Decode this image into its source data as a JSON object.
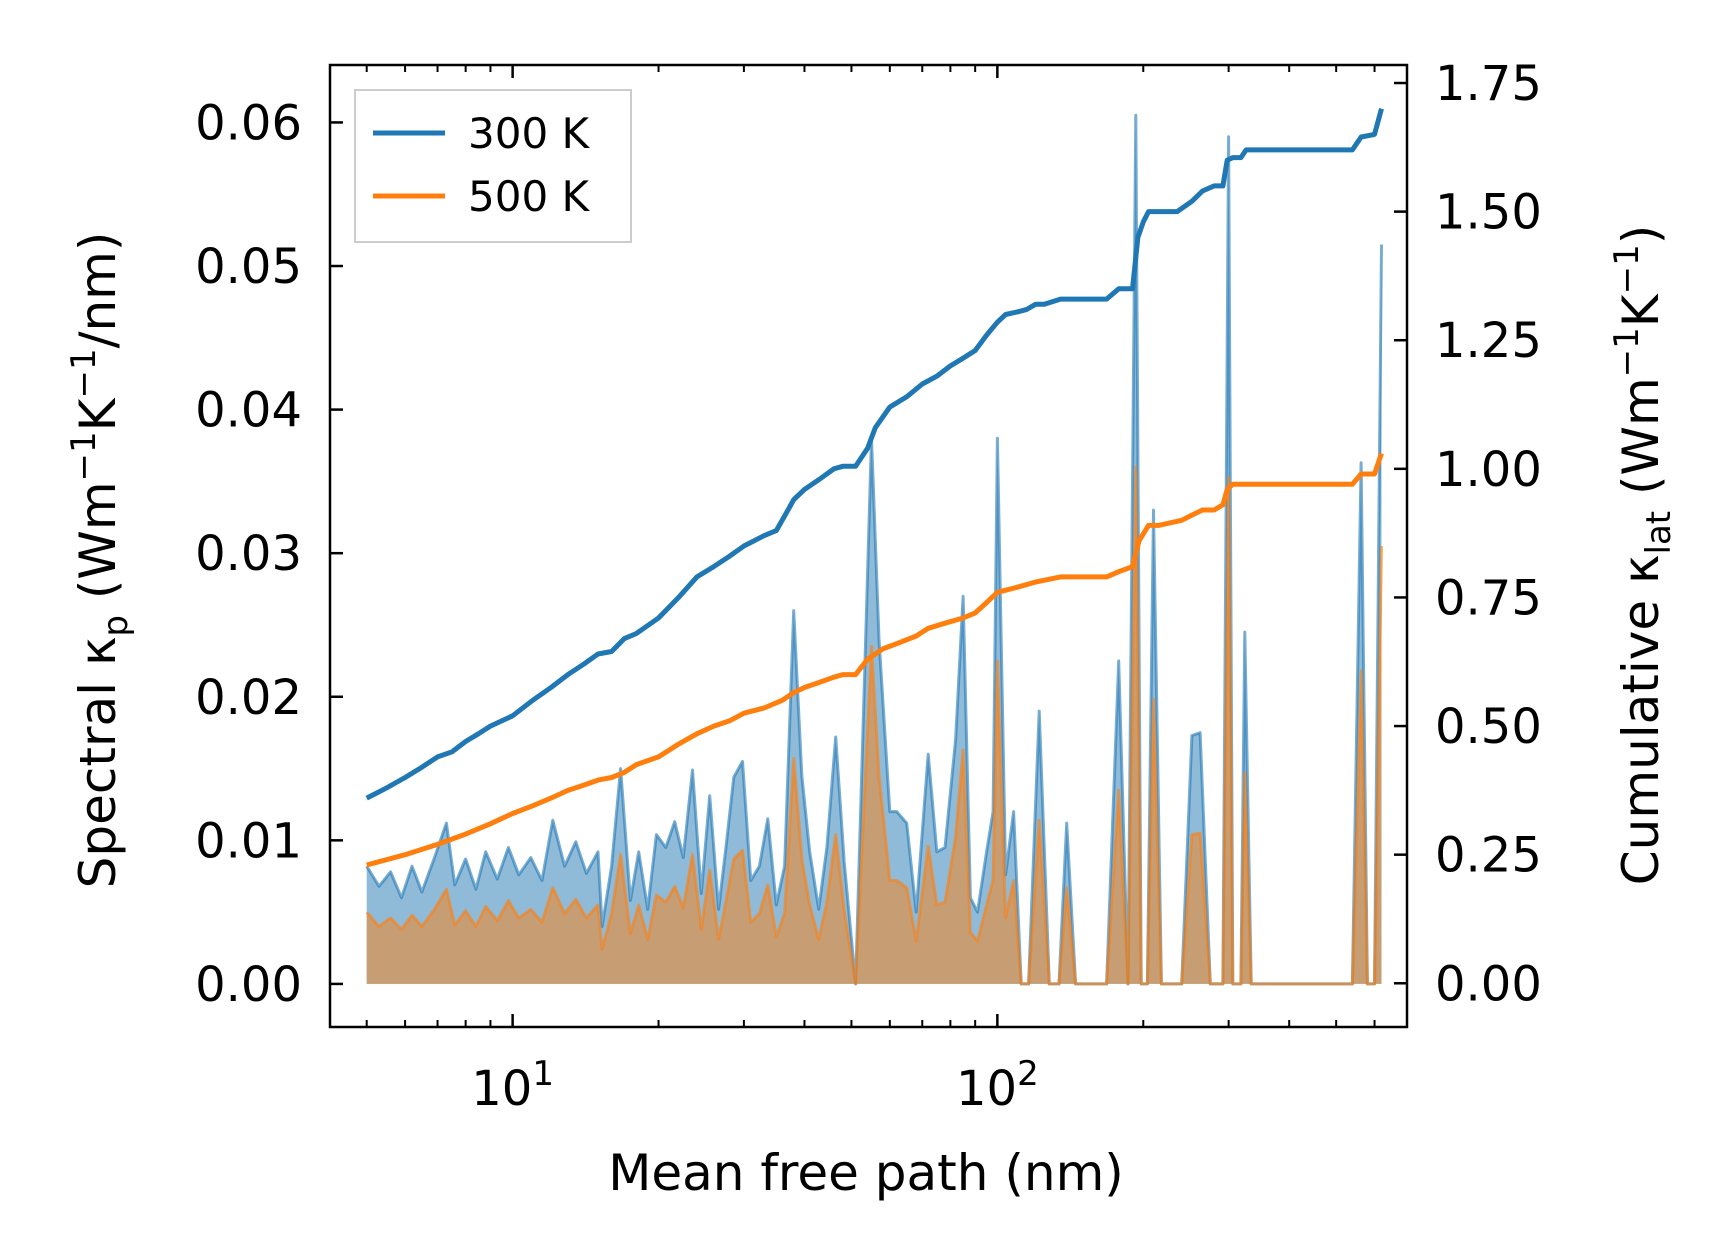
{
  "chart_data": {
    "type": "line",
    "xscale": "log",
    "xlabel": "Mean free path (nm)",
    "ylabel_left": {
      "text": "Spectral κ",
      "sub": "p",
      "unit": " (Wm",
      "sup1": "−1",
      "mid": "K",
      "sup2": "−1",
      "end": "/nm)"
    },
    "ylabel_right": {
      "text": "Cumulative κ",
      "sub": "lat",
      "unit": " (Wm",
      "sup1": "−1",
      "mid": "K",
      "sup2": "−1",
      "end": ")"
    },
    "xlim": [
      4.2,
      700
    ],
    "ylim_left": [
      -0.003,
      0.064
    ],
    "ylim_right": [
      -0.085,
      1.785
    ],
    "xticks": [
      {
        "base": "10",
        "exp": "1",
        "value": 10
      },
      {
        "base": "10",
        "exp": "2",
        "value": 100
      }
    ],
    "yticks_left": [
      "0.00",
      "0.01",
      "0.02",
      "0.03",
      "0.04",
      "0.05",
      "0.06"
    ],
    "yticks_right": [
      "0.00",
      "0.25",
      "0.50",
      "0.75",
      "1.00",
      "1.25",
      "1.50",
      "1.75"
    ],
    "legend": {
      "position": "upper-left",
      "entries": [
        {
          "label": "300 K",
          "color": "#1f77b4"
        },
        {
          "label": "500 K",
          "color": "#ff7f0e"
        }
      ]
    },
    "spectral": {
      "300K": [
        [
          5,
          0.0082
        ],
        [
          5.3,
          0.0068
        ],
        [
          5.6,
          0.0078
        ],
        [
          5.9,
          0.006
        ],
        [
          6.2,
          0.0082
        ],
        [
          6.5,
          0.0064
        ],
        [
          6.9,
          0.0088
        ],
        [
          7.3,
          0.0112
        ],
        [
          7.6,
          0.0069
        ],
        [
          8.0,
          0.0087
        ],
        [
          8.4,
          0.0066
        ],
        [
          8.8,
          0.0092
        ],
        [
          9.3,
          0.0073
        ],
        [
          9.8,
          0.0095
        ],
        [
          10.3,
          0.0076
        ],
        [
          10.9,
          0.0088
        ],
        [
          11.5,
          0.0072
        ],
        [
          12.1,
          0.0114
        ],
        [
          12.8,
          0.0082
        ],
        [
          13.5,
          0.0099
        ],
        [
          14.2,
          0.0077
        ],
        [
          15.0,
          0.0092
        ],
        [
          15.3,
          0.004
        ],
        [
          16.0,
          0.0082
        ],
        [
          16.7,
          0.015
        ],
        [
          17.5,
          0.0058
        ],
        [
          18.2,
          0.0092
        ],
        [
          19.0,
          0.0052
        ],
        [
          19.8,
          0.0104
        ],
        [
          20.7,
          0.0095
        ],
        [
          21.6,
          0.0113
        ],
        [
          22.5,
          0.0088
        ],
        [
          23.5,
          0.0149
        ],
        [
          24.5,
          0.0063
        ],
        [
          25.5,
          0.0131
        ],
        [
          26.6,
          0.0052
        ],
        [
          27.5,
          0.0093
        ],
        [
          28.6,
          0.0144
        ],
        [
          29.8,
          0.0155
        ],
        [
          31.0,
          0.0072
        ],
        [
          32.3,
          0.0082
        ],
        [
          33.6,
          0.0115
        ],
        [
          35.0,
          0.0055
        ],
        [
          36.4,
          0.0082
        ],
        [
          38.0,
          0.026
        ],
        [
          39.5,
          0.0145
        ],
        [
          41.0,
          0.0092
        ],
        [
          42.8,
          0.0052
        ],
        [
          44.5,
          0.0095
        ],
        [
          46.4,
          0.0172
        ],
        [
          48.3,
          0.0085
        ],
        [
          51,
          0.0
        ],
        [
          55,
          0.038
        ],
        [
          57,
          0.024
        ],
        [
          60,
          0.012
        ],
        [
          62,
          0.012
        ],
        [
          65,
          0.0112
        ],
        [
          68,
          0.005
        ],
        [
          72,
          0.016
        ],
        [
          75,
          0.0092
        ],
        [
          78,
          0.0095
        ],
        [
          82,
          0.017
        ],
        [
          85,
          0.027
        ],
        [
          88,
          0.006
        ],
        [
          91,
          0.005
        ],
        [
          95,
          0.0092
        ],
        [
          98,
          0.012
        ],
        [
          100,
          0.038
        ],
        [
          104,
          0.0076
        ],
        [
          108,
          0.012
        ],
        [
          112,
          0.0
        ],
        [
          116,
          0.0
        ],
        [
          122,
          0.019
        ],
        [
          128,
          0.0
        ],
        [
          134,
          0.0
        ],
        [
          139,
          0.0112
        ],
        [
          145,
          0.0
        ],
        [
          155,
          0.0
        ],
        [
          168,
          0.0
        ],
        [
          178,
          0.0225
        ],
        [
          186,
          0.0
        ],
        [
          193,
          0.0605
        ],
        [
          198,
          0.0
        ],
        [
          204,
          0.0
        ],
        [
          210,
          0.033
        ],
        [
          218,
          0.0
        ],
        [
          240,
          0.0
        ],
        [
          252,
          0.0173
        ],
        [
          262,
          0.0175
        ],
        [
          275,
          0.0
        ],
        [
          292,
          0.0
        ],
        [
          300,
          0.059
        ],
        [
          306,
          0.0
        ],
        [
          318,
          0.0
        ],
        [
          324,
          0.0245
        ],
        [
          334,
          0.0
        ],
        [
          400,
          0.0
        ],
        [
          540,
          0.0
        ],
        [
          563,
          0.0363
        ],
        [
          580,
          0.0
        ],
        [
          600,
          0.0
        ],
        [
          620,
          0.0515
        ]
      ],
      "500K": [
        [
          5,
          0.005
        ],
        [
          5.3,
          0.004
        ],
        [
          5.6,
          0.0046
        ],
        [
          5.9,
          0.0038
        ],
        [
          6.2,
          0.0048
        ],
        [
          6.5,
          0.004
        ],
        [
          6.9,
          0.0052
        ],
        [
          7.3,
          0.0066
        ],
        [
          7.6,
          0.0041
        ],
        [
          8.0,
          0.0051
        ],
        [
          8.4,
          0.004
        ],
        [
          8.8,
          0.0054
        ],
        [
          9.3,
          0.0044
        ],
        [
          9.8,
          0.0058
        ],
        [
          10.3,
          0.0046
        ],
        [
          10.9,
          0.0052
        ],
        [
          11.5,
          0.0043
        ],
        [
          12.1,
          0.0067
        ],
        [
          12.8,
          0.0049
        ],
        [
          13.5,
          0.0059
        ],
        [
          14.2,
          0.0046
        ],
        [
          15.0,
          0.0055
        ],
        [
          15.3,
          0.0024
        ],
        [
          16.0,
          0.0049
        ],
        [
          16.7,
          0.009
        ],
        [
          17.5,
          0.0035
        ],
        [
          18.2,
          0.0055
        ],
        [
          19.0,
          0.0031
        ],
        [
          19.8,
          0.0062
        ],
        [
          20.7,
          0.0057
        ],
        [
          21.6,
          0.0068
        ],
        [
          22.5,
          0.0053
        ],
        [
          23.5,
          0.009
        ],
        [
          24.5,
          0.0038
        ],
        [
          25.5,
          0.0079
        ],
        [
          26.6,
          0.0031
        ],
        [
          27.5,
          0.0056
        ],
        [
          28.6,
          0.0087
        ],
        [
          29.8,
          0.0093
        ],
        [
          31.0,
          0.0043
        ],
        [
          32.3,
          0.0049
        ],
        [
          33.6,
          0.0069
        ],
        [
          35.0,
          0.0033
        ],
        [
          36.4,
          0.0049
        ],
        [
          38.0,
          0.0157
        ],
        [
          39.5,
          0.0087
        ],
        [
          41.0,
          0.0055
        ],
        [
          42.8,
          0.0031
        ],
        [
          44.5,
          0.0057
        ],
        [
          46.4,
          0.0104
        ],
        [
          48.3,
          0.0051
        ],
        [
          51,
          0.0
        ],
        [
          55,
          0.0235
        ],
        [
          57,
          0.0145
        ],
        [
          60,
          0.0072
        ],
        [
          62,
          0.0072
        ],
        [
          65,
          0.0067
        ],
        [
          68,
          0.003
        ],
        [
          72,
          0.0096
        ],
        [
          75,
          0.0055
        ],
        [
          78,
          0.0057
        ],
        [
          82,
          0.0102
        ],
        [
          85,
          0.0163
        ],
        [
          88,
          0.0036
        ],
        [
          91,
          0.003
        ],
        [
          95,
          0.0055
        ],
        [
          98,
          0.0072
        ],
        [
          100,
          0.0225
        ],
        [
          104,
          0.0046
        ],
        [
          108,
          0.0072
        ],
        [
          112,
          0.0
        ],
        [
          116,
          0.0
        ],
        [
          122,
          0.0114
        ],
        [
          128,
          0.0
        ],
        [
          134,
          0.0
        ],
        [
          139,
          0.0067
        ],
        [
          145,
          0.0
        ],
        [
          155,
          0.0
        ],
        [
          168,
          0.0
        ],
        [
          178,
          0.0135
        ],
        [
          186,
          0.0
        ],
        [
          193,
          0.036
        ],
        [
          198,
          0.0
        ],
        [
          204,
          0.0
        ],
        [
          210,
          0.0198
        ],
        [
          218,
          0.0
        ],
        [
          240,
          0.0
        ],
        [
          252,
          0.0104
        ],
        [
          262,
          0.0105
        ],
        [
          275,
          0.0
        ],
        [
          292,
          0.0
        ],
        [
          300,
          0.0353
        ],
        [
          306,
          0.0
        ],
        [
          318,
          0.0
        ],
        [
          324,
          0.0147
        ],
        [
          334,
          0.0
        ],
        [
          400,
          0.0
        ],
        [
          540,
          0.0
        ],
        [
          563,
          0.0218
        ],
        [
          580,
          0.0
        ],
        [
          600,
          0.0
        ],
        [
          620,
          0.0305
        ]
      ]
    },
    "cumulative": {
      "300K": [
        [
          5,
          0.36
        ],
        [
          5.5,
          0.38
        ],
        [
          6,
          0.4
        ],
        [
          6.5,
          0.42
        ],
        [
          7,
          0.44
        ],
        [
          7.5,
          0.45
        ],
        [
          8,
          0.47
        ],
        [
          8.5,
          0.485
        ],
        [
          9,
          0.5
        ],
        [
          10,
          0.52
        ],
        [
          11,
          0.55
        ],
        [
          12,
          0.575
        ],
        [
          13,
          0.6
        ],
        [
          14,
          0.62
        ],
        [
          15,
          0.64
        ],
        [
          16,
          0.645
        ],
        [
          17,
          0.67
        ],
        [
          18,
          0.68
        ],
        [
          20,
          0.71
        ],
        [
          22,
          0.75
        ],
        [
          24,
          0.79
        ],
        [
          26,
          0.81
        ],
        [
          28,
          0.83
        ],
        [
          30,
          0.85
        ],
        [
          33,
          0.87
        ],
        [
          35,
          0.88
        ],
        [
          37,
          0.92
        ],
        [
          38,
          0.94
        ],
        [
          40,
          0.96
        ],
        [
          43,
          0.98
        ],
        [
          46,
          1.0
        ],
        [
          48,
          1.005
        ],
        [
          51,
          1.005
        ],
        [
          54,
          1.04
        ],
        [
          56,
          1.08
        ],
        [
          60,
          1.12
        ],
        [
          65,
          1.14
        ],
        [
          70,
          1.165
        ],
        [
          75,
          1.18
        ],
        [
          80,
          1.2
        ],
        [
          85,
          1.215
        ],
        [
          90,
          1.23
        ],
        [
          95,
          1.26
        ],
        [
          100,
          1.285
        ],
        [
          104,
          1.3
        ],
        [
          110,
          1.305
        ],
        [
          115,
          1.31
        ],
        [
          120,
          1.32
        ],
        [
          125,
          1.32
        ],
        [
          135,
          1.33
        ],
        [
          150,
          1.33
        ],
        [
          168,
          1.33
        ],
        [
          178,
          1.35
        ],
        [
          190,
          1.35
        ],
        [
          195,
          1.45
        ],
        [
          200,
          1.48
        ],
        [
          205,
          1.5
        ],
        [
          215,
          1.5
        ],
        [
          235,
          1.5
        ],
        [
          252,
          1.52
        ],
        [
          265,
          1.54
        ],
        [
          280,
          1.55
        ],
        [
          292,
          1.55
        ],
        [
          298,
          1.6
        ],
        [
          306,
          1.605
        ],
        [
          318,
          1.605
        ],
        [
          326,
          1.62
        ],
        [
          400,
          1.62
        ],
        [
          500,
          1.62
        ],
        [
          540,
          1.62
        ],
        [
          563,
          1.645
        ],
        [
          600,
          1.65
        ],
        [
          620,
          1.7
        ]
      ],
      "500K": [
        [
          5,
          0.23
        ],
        [
          6,
          0.25
        ],
        [
          7,
          0.27
        ],
        [
          8,
          0.29
        ],
        [
          9,
          0.31
        ],
        [
          10,
          0.33
        ],
        [
          11,
          0.345
        ],
        [
          12,
          0.36
        ],
        [
          13,
          0.375
        ],
        [
          14,
          0.385
        ],
        [
          15,
          0.395
        ],
        [
          16,
          0.4
        ],
        [
          17,
          0.41
        ],
        [
          18,
          0.425
        ],
        [
          20,
          0.44
        ],
        [
          22,
          0.465
        ],
        [
          24,
          0.485
        ],
        [
          26,
          0.5
        ],
        [
          28,
          0.51
        ],
        [
          30,
          0.525
        ],
        [
          33,
          0.535
        ],
        [
          36,
          0.55
        ],
        [
          38,
          0.565
        ],
        [
          40,
          0.575
        ],
        [
          43,
          0.585
        ],
        [
          46,
          0.595
        ],
        [
          48,
          0.6
        ],
        [
          51,
          0.6
        ],
        [
          54,
          0.63
        ],
        [
          58,
          0.65
        ],
        [
          62,
          0.66
        ],
        [
          68,
          0.675
        ],
        [
          72,
          0.69
        ],
        [
          78,
          0.7
        ],
        [
          85,
          0.71
        ],
        [
          90,
          0.72
        ],
        [
          95,
          0.74
        ],
        [
          100,
          0.76
        ],
        [
          110,
          0.77
        ],
        [
          120,
          0.78
        ],
        [
          135,
          0.79
        ],
        [
          150,
          0.79
        ],
        [
          168,
          0.79
        ],
        [
          178,
          0.8
        ],
        [
          190,
          0.81
        ],
        [
          196,
          0.86
        ],
        [
          205,
          0.89
        ],
        [
          215,
          0.89
        ],
        [
          240,
          0.9
        ],
        [
          252,
          0.91
        ],
        [
          265,
          0.92
        ],
        [
          280,
          0.92
        ],
        [
          292,
          0.93
        ],
        [
          298,
          0.96
        ],
        [
          306,
          0.97
        ],
        [
          400,
          0.97
        ],
        [
          540,
          0.97
        ],
        [
          563,
          0.99
        ],
        [
          600,
          0.99
        ],
        [
          620,
          1.03
        ]
      ]
    }
  }
}
